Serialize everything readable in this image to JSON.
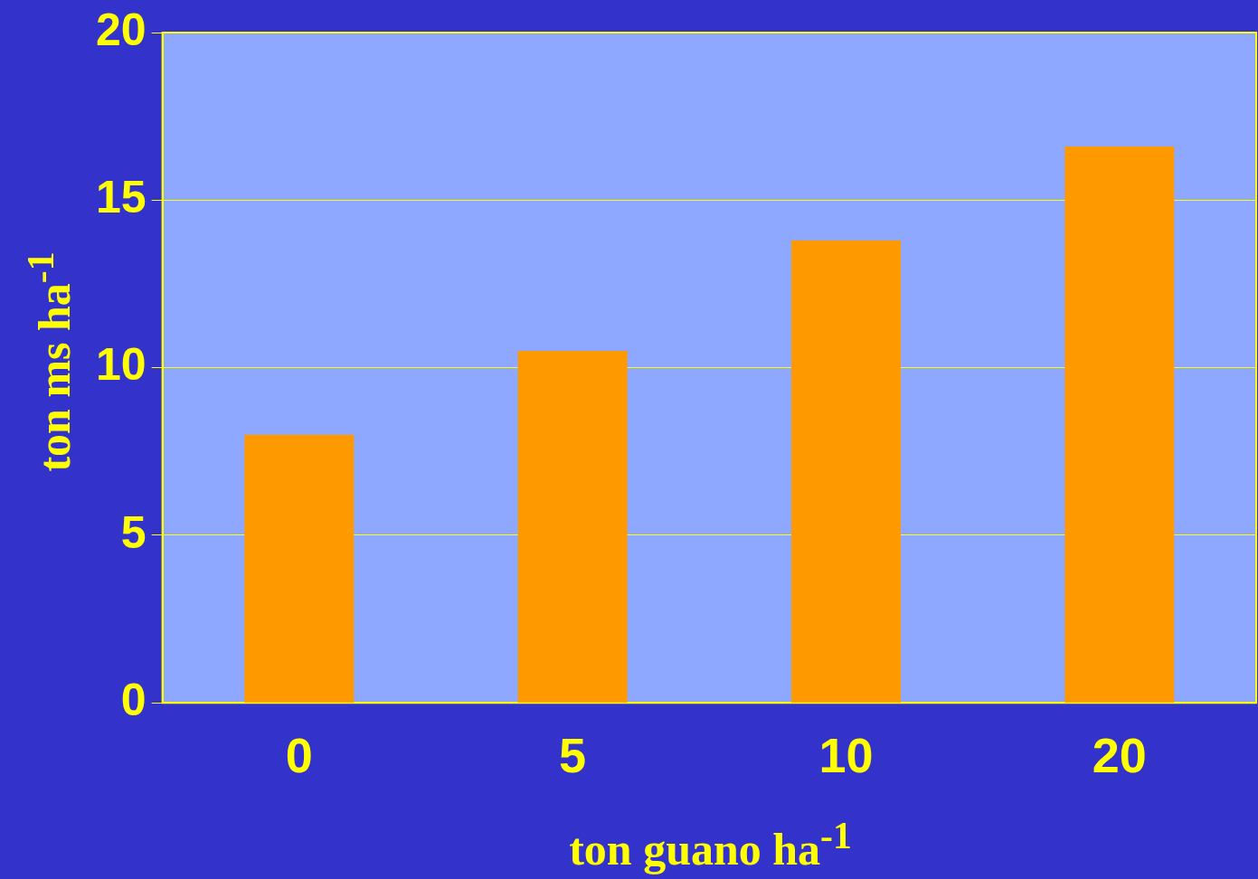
{
  "chart_data": {
    "type": "bar",
    "xlabel": "ton guano ha$^{-1}$",
    "ylabel": "ton ms ha$^{-1}$",
    "categories": [
      "0",
      "5",
      "10",
      "20"
    ],
    "series": [
      {
        "color": "#ff9900",
        "values": [
          8.0,
          10.5,
          13.8,
          16.6
        ]
      }
    ],
    "ylim": [
      0,
      20
    ],
    "yticks": [
      0,
      5,
      10,
      15,
      20
    ],
    "grid": "y",
    "legend": false
  }
}
